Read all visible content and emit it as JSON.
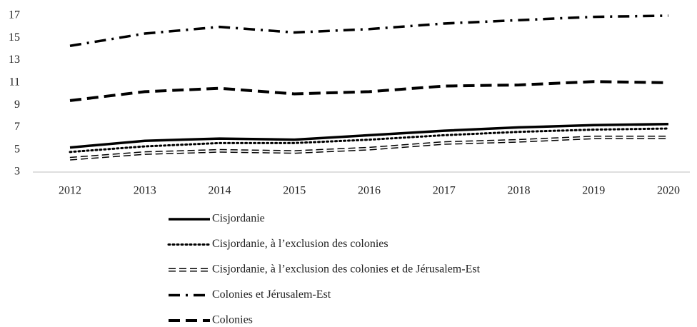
{
  "chart_data": {
    "type": "line",
    "x": [
      "2012",
      "2013",
      "2014",
      "2015",
      "2016",
      "2017",
      "2018",
      "2019",
      "2020"
    ],
    "series": [
      {
        "name": "Cisjordanie",
        "color": "#000000",
        "values": [
          5.2,
          5.8,
          6.0,
          5.9,
          6.3,
          6.7,
          7.0,
          7.2,
          7.3
        ]
      },
      {
        "name": "Cisjordanie, à l’exclusion des colonies",
        "color": "#000000",
        "values": [
          4.8,
          5.3,
          5.6,
          5.6,
          5.9,
          6.3,
          6.6,
          6.8,
          6.9
        ]
      },
      {
        "name": "Cisjordanie, à l’exclusion des colonies et de Jérusalem-Est",
        "color": "#000000",
        "values": [
          4.2,
          4.7,
          4.9,
          4.8,
          5.1,
          5.6,
          5.8,
          6.1,
          6.1
        ]
      },
      {
        "name": "Colonies et Jérusalem-Est",
        "color": "#000000",
        "values": [
          14.3,
          15.4,
          16.0,
          15.5,
          15.8,
          16.3,
          16.6,
          16.9,
          17.0
        ]
      },
      {
        "name": "Colonies",
        "color": "#000000",
        "values": [
          9.4,
          10.2,
          10.5,
          10.0,
          10.2,
          10.7,
          10.8,
          11.1,
          11.0
        ]
      }
    ],
    "ylim": [
      3,
      17
    ],
    "yticks": [
      3,
      5,
      7,
      9,
      11,
      13,
      15,
      17
    ]
  }
}
